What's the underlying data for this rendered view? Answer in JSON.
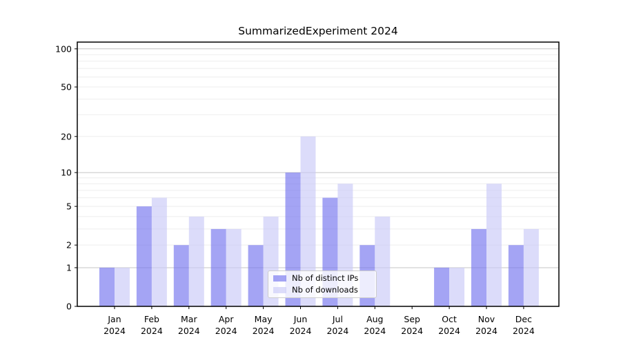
{
  "chart_data": {
    "type": "bar",
    "title": "SummarizedExperiment 2024",
    "categories": [
      "Jan 2024",
      "Feb 2024",
      "Mar 2024",
      "Apr 2024",
      "May 2024",
      "Jun 2024",
      "Jul 2024",
      "Aug 2024",
      "Sep 2024",
      "Oct 2024",
      "Nov 2024",
      "Dec 2024"
    ],
    "series": [
      {
        "name": "Nb of distinct IPs",
        "color": "#7373ee",
        "values": [
          1,
          5,
          2,
          3,
          2,
          10,
          6,
          2,
          0,
          1,
          3,
          2
        ]
      },
      {
        "name": "Nb of downloads",
        "color": "#c9c9f8",
        "values": [
          1,
          6,
          4,
          3,
          4,
          20,
          8,
          4,
          0,
          1,
          8,
          3
        ]
      }
    ],
    "bar_fill_opacity": 0.65,
    "yscale": "log1p",
    "ylim": [
      0,
      113
    ],
    "yticks": [
      0,
      1,
      2,
      5,
      10,
      20,
      50,
      100
    ],
    "gridlines": {
      "major": [
        1,
        10,
        100
      ],
      "minor": [
        2,
        3,
        4,
        5,
        6,
        7,
        8,
        9,
        20,
        30,
        40,
        50,
        60,
        70,
        80,
        90
      ],
      "major_color": "#c4c4c4",
      "minor_color": "#ededed"
    },
    "legend": {
      "position": "lower center"
    },
    "axis_color": "#000000",
    "grid": true
  }
}
